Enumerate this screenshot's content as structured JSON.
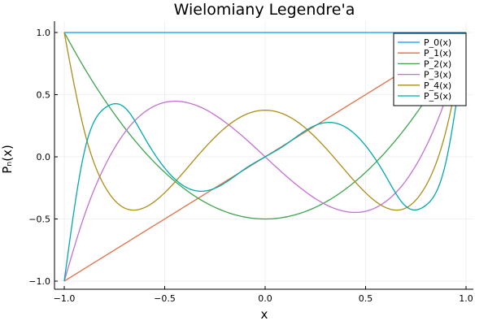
{
  "chart_data": {
    "type": "line",
    "title": "Wielomiany Legendre'a",
    "xlabel": "x",
    "ylabel": "Pₙ(x)",
    "xlim": [
      -1.0,
      1.0
    ],
    "ylim": [
      -1.0,
      1.0
    ],
    "xticks": [
      -1.0,
      -0.5,
      0.0,
      0.5,
      1.0
    ],
    "xtick_labels": [
      "−1.0",
      "−0.5",
      "0.0",
      "0.5",
      "1.0"
    ],
    "yticks": [
      -1.0,
      -0.5,
      0.0,
      0.5,
      1.0
    ],
    "ytick_labels": [
      "−1.0",
      "−0.5",
      "0.0",
      "0.5",
      "1.0"
    ],
    "grid": true,
    "legend_position": "top-right",
    "x": [
      -1.0,
      -0.9,
      -0.8,
      -0.7,
      -0.6,
      -0.5,
      -0.4,
      -0.3,
      -0.2,
      -0.1,
      0.0,
      0.1,
      0.2,
      0.3,
      0.4,
      0.5,
      0.6,
      0.7,
      0.8,
      0.9,
      1.0
    ],
    "series": [
      {
        "name": "P_0(x)",
        "color": "#009AFA",
        "values": [
          1,
          1,
          1,
          1,
          1,
          1,
          1,
          1,
          1,
          1,
          1,
          1,
          1,
          1,
          1,
          1,
          1,
          1,
          1,
          1,
          1
        ]
      },
      {
        "name": "P_1(x)",
        "color": "#E36F47",
        "values": [
          -1.0,
          -0.9,
          -0.8,
          -0.7,
          -0.6,
          -0.5,
          -0.4,
          -0.3,
          -0.2,
          -0.1,
          0.0,
          0.1,
          0.2,
          0.3,
          0.4,
          0.5,
          0.6,
          0.7,
          0.8,
          0.9,
          1.0
        ]
      },
      {
        "name": "P_2(x)",
        "color": "#3EA44E",
        "values": [
          1.0,
          0.715,
          0.46,
          0.235,
          0.04,
          -0.125,
          -0.26,
          -0.365,
          -0.44,
          -0.485,
          -0.5,
          -0.485,
          -0.44,
          -0.365,
          -0.26,
          -0.125,
          0.04,
          0.235,
          0.46,
          0.715,
          1.0
        ]
      },
      {
        "name": "P_3(x)",
        "color": "#C371D2",
        "values": [
          -1.0,
          -0.473,
          -0.08,
          0.193,
          0.36,
          0.438,
          0.44,
          0.383,
          0.28,
          0.148,
          0.0,
          -0.148,
          -0.28,
          -0.383,
          -0.44,
          -0.438,
          -0.36,
          -0.193,
          0.08,
          0.473,
          1.0
        ]
      },
      {
        "name": "P_4(x)",
        "color": "#AC8D19",
        "values": [
          1.0,
          0.208,
          -0.233,
          -0.412,
          -0.408,
          -0.289,
          -0.113,
          0.073,
          0.232,
          0.338,
          0.375,
          0.338,
          0.232,
          0.073,
          -0.113,
          -0.289,
          -0.408,
          -0.412,
          -0.233,
          0.208,
          1.0
        ]
      },
      {
        "name": "P_5(x)",
        "color": "#00A9AD",
        "values": [
          -1.0,
          0.041,
          0.39,
          0.398,
          0.153,
          -0.09,
          -0.239,
          -0.275,
          -0.21,
          -0.096,
          0.0,
          0.096,
          0.21,
          0.275,
          0.239,
          0.09,
          -0.153,
          -0.398,
          -0.39,
          -0.041,
          1.0
        ]
      }
    ]
  }
}
